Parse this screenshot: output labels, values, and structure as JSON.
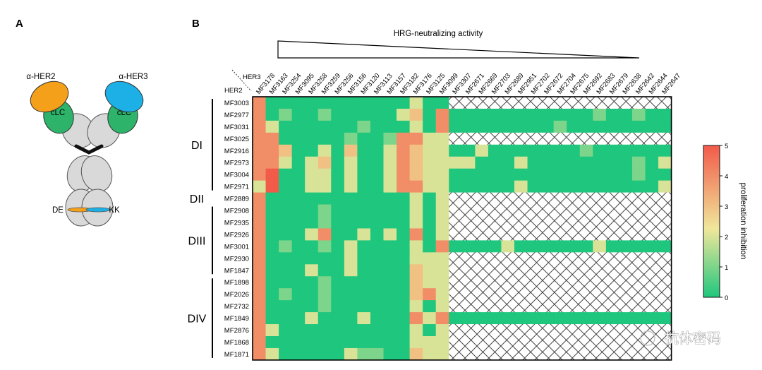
{
  "panels": {
    "a": "A",
    "b": "B"
  },
  "antibody": {
    "arm_left": "α-HER2",
    "arm_right": "α-HER3",
    "light_chain_left": "cLC",
    "light_chain_right": "cLC",
    "mut_left": "DE",
    "mut_right": "KK",
    "colors": {
      "her2": "#f5a01a",
      "her3": "#1cb0e6",
      "clc": "#2db36a",
      "fab": "#d9d9d9"
    }
  },
  "activity_label": "HRG-neutralizing activity",
  "axis_corner": {
    "her3": "HER3",
    "her2": "HER2"
  },
  "domains": [
    "DI",
    "DII",
    "DIII",
    "DIV"
  ],
  "colorbar": {
    "label": "proliferation inhibition",
    "ticks": [
      "5",
      "4",
      "3",
      "2",
      "1",
      "0"
    ],
    "colors": [
      "#1fc67d",
      "#f0e79a",
      "#f25a4a"
    ]
  },
  "watermark": "抗体密码",
  "chart_data": {
    "type": "heatmap",
    "x_title": "HER3",
    "y_title": "HER2",
    "value_range": [
      0,
      5
    ],
    "columns": [
      "MF3178",
      "MF3163",
      "MF3254",
      "MF3095",
      "MF3258",
      "MF3259",
      "MF3256",
      "MF3156",
      "MF3120",
      "MF3113",
      "MF3157",
      "MF3182",
      "MF3176",
      "MF3125",
      "MF3099",
      "MF3307",
      "MF2671",
      "MF2669",
      "MF2703",
      "MF2689",
      "MF2951",
      "MF2702",
      "MF2672",
      "MF2704",
      "MF2675",
      "MF2692",
      "MF2683",
      "MF2679",
      "MF2638",
      "MF2642",
      "MF2644",
      "MF2647"
    ],
    "rows": [
      "MF3003",
      "MF2977",
      "MF3031",
      "MF3025",
      "MF2916",
      "MF2973",
      "MF3004",
      "MF2971",
      "MF2889",
      "MF2908",
      "MF2935",
      "MF2926",
      "MF3001",
      "MF2930",
      "MF1847",
      "MF1898",
      "MF2026",
      "MF2732",
      "MF1849",
      "MF2876",
      "MF1868",
      "MF1871"
    ],
    "row_domains": [
      "DI",
      "DI",
      "DI",
      "DI",
      "DI",
      "DI",
      "DI",
      "DI",
      "DII",
      "DIII",
      "DIII",
      "DIII",
      "DIII",
      "DIII",
      "DIII",
      "DIV",
      "DIV",
      "DIV",
      "DIV",
      "DIV",
      "DIV",
      "DIV"
    ],
    "not_tested_marker": null,
    "values": [
      [
        4,
        0,
        0,
        0,
        0,
        0,
        0,
        0,
        0,
        0,
        0,
        0,
        2,
        0,
        0,
        null,
        null,
        null,
        null,
        null,
        null,
        null,
        null,
        null,
        null,
        null,
        null,
        null,
        null,
        null,
        null,
        null
      ],
      [
        4,
        0,
        1,
        0,
        0,
        1,
        0,
        0,
        0,
        0,
        0,
        2,
        3,
        0,
        4,
        0,
        0,
        0,
        0,
        0,
        0,
        0,
        0,
        0,
        0,
        0,
        1,
        0,
        0,
        1,
        0,
        0
      ],
      [
        4,
        2,
        0,
        0,
        0,
        0,
        0,
        0,
        1,
        0,
        0,
        0,
        2,
        0,
        4,
        0,
        0,
        0,
        0,
        0,
        0,
        0,
        0,
        1,
        0,
        0,
        0,
        0,
        0,
        0,
        0,
        0
      ],
      [
        4,
        4,
        0,
        0,
        0,
        0,
        0,
        1,
        0,
        0,
        1,
        4,
        4,
        2,
        2,
        null,
        null,
        null,
        null,
        null,
        null,
        null,
        null,
        null,
        null,
        null,
        null,
        null,
        null,
        null,
        null,
        null
      ],
      [
        4,
        4,
        3,
        0,
        0,
        2,
        0,
        3,
        0,
        0,
        2,
        4,
        3,
        2,
        2,
        0,
        0,
        2,
        0,
        0,
        0,
        0,
        0,
        0,
        0,
        1,
        0,
        0,
        0,
        0,
        0,
        0
      ],
      [
        4,
        4,
        2,
        0,
        2,
        3,
        0,
        2,
        0,
        0,
        2,
        4,
        3,
        2,
        2,
        2,
        2,
        0,
        0,
        0,
        2,
        0,
        0,
        0,
        0,
        0,
        0,
        0,
        0,
        1,
        0,
        2
      ],
      [
        4,
        5,
        0,
        0,
        2,
        2,
        0,
        2,
        0,
        0,
        2,
        4,
        3,
        2,
        2,
        0,
        0,
        0,
        0,
        0,
        0,
        0,
        0,
        0,
        0,
        0,
        0,
        0,
        0,
        1,
        0,
        0
      ],
      [
        2,
        5,
        0,
        0,
        2,
        2,
        0,
        2,
        0,
        0,
        2,
        4,
        4,
        2,
        2,
        0,
        0,
        0,
        0,
        0,
        2,
        0,
        0,
        0,
        0,
        0,
        0,
        0,
        0,
        0,
        0,
        2
      ],
      [
        4,
        0,
        0,
        0,
        0,
        0,
        0,
        0,
        0,
        0,
        0,
        0,
        2,
        0,
        2,
        null,
        null,
        null,
        null,
        null,
        null,
        null,
        null,
        null,
        null,
        null,
        null,
        null,
        null,
        null,
        null,
        null
      ],
      [
        4,
        0,
        0,
        0,
        0,
        1,
        0,
        0,
        0,
        0,
        0,
        0,
        2,
        0,
        2,
        null,
        null,
        null,
        null,
        null,
        null,
        null,
        null,
        null,
        null,
        null,
        null,
        null,
        null,
        null,
        null,
        null
      ],
      [
        4,
        0,
        0,
        0,
        0,
        1,
        0,
        0,
        0,
        0,
        0,
        0,
        2,
        0,
        2,
        null,
        null,
        null,
        null,
        null,
        null,
        null,
        null,
        null,
        null,
        null,
        null,
        null,
        null,
        null,
        null,
        null
      ],
      [
        4,
        0,
        0,
        0,
        2,
        4,
        0,
        0,
        2,
        0,
        2,
        0,
        4,
        0,
        2,
        null,
        null,
        null,
        null,
        null,
        null,
        null,
        null,
        null,
        null,
        null,
        null,
        null,
        null,
        null,
        null,
        null
      ],
      [
        4,
        0,
        1,
        0,
        0,
        1,
        0,
        2,
        0,
        0,
        0,
        0,
        2,
        0,
        4,
        0,
        0,
        0,
        0,
        2,
        0,
        0,
        0,
        0,
        0,
        0,
        2,
        0,
        0,
        0,
        0,
        0
      ],
      [
        4,
        0,
        0,
        0,
        0,
        0,
        0,
        2,
        0,
        0,
        0,
        0,
        2,
        2,
        2,
        null,
        null,
        null,
        null,
        null,
        null,
        null,
        null,
        null,
        null,
        null,
        null,
        null,
        null,
        null,
        null,
        null
      ],
      [
        4,
        0,
        0,
        0,
        2,
        0,
        0,
        2,
        0,
        0,
        0,
        0,
        3,
        2,
        2,
        null,
        null,
        null,
        null,
        null,
        null,
        null,
        null,
        null,
        null,
        null,
        null,
        null,
        null,
        null,
        null,
        null
      ],
      [
        4,
        0,
        0,
        0,
        0,
        1,
        0,
        0,
        0,
        0,
        0,
        0,
        3,
        2,
        2,
        null,
        null,
        null,
        null,
        null,
        null,
        null,
        null,
        null,
        null,
        null,
        null,
        null,
        null,
        null,
        null,
        null
      ],
      [
        4,
        0,
        1,
        0,
        0,
        1,
        0,
        0,
        0,
        0,
        0,
        0,
        3,
        4,
        2,
        null,
        null,
        null,
        null,
        null,
        null,
        null,
        null,
        null,
        null,
        null,
        null,
        null,
        null,
        null,
        null,
        null
      ],
      [
        4,
        0,
        0,
        0,
        0,
        1,
        0,
        0,
        0,
        0,
        0,
        0,
        2,
        0,
        2,
        null,
        null,
        null,
        null,
        null,
        null,
        null,
        null,
        null,
        null,
        null,
        null,
        null,
        null,
        null,
        null,
        null
      ],
      [
        4,
        0,
        0,
        0,
        2,
        0,
        0,
        0,
        2,
        0,
        0,
        0,
        4,
        2,
        4,
        0,
        0,
        0,
        0,
        0,
        0,
        0,
        0,
        0,
        0,
        0,
        0,
        0,
        0,
        0,
        0,
        0
      ],
      [
        4,
        2,
        0,
        0,
        0,
        0,
        0,
        0,
        0,
        0,
        0,
        0,
        2,
        0,
        2,
        null,
        null,
        null,
        null,
        null,
        null,
        null,
        null,
        null,
        null,
        null,
        null,
        null,
        null,
        null,
        null,
        null
      ],
      [
        4,
        0,
        0,
        0,
        0,
        0,
        0,
        0,
        0,
        0,
        0,
        0,
        2,
        2,
        2,
        null,
        null,
        null,
        null,
        null,
        null,
        null,
        null,
        null,
        null,
        null,
        null,
        null,
        null,
        null,
        null,
        null
      ],
      [
        4,
        2,
        0,
        0,
        0,
        0,
        0,
        2,
        1,
        1,
        0,
        0,
        3,
        2,
        2,
        null,
        null,
        null,
        null,
        null,
        null,
        null,
        null,
        null,
        null,
        null,
        null,
        null,
        null,
        null,
        null,
        null
      ]
    ]
  }
}
